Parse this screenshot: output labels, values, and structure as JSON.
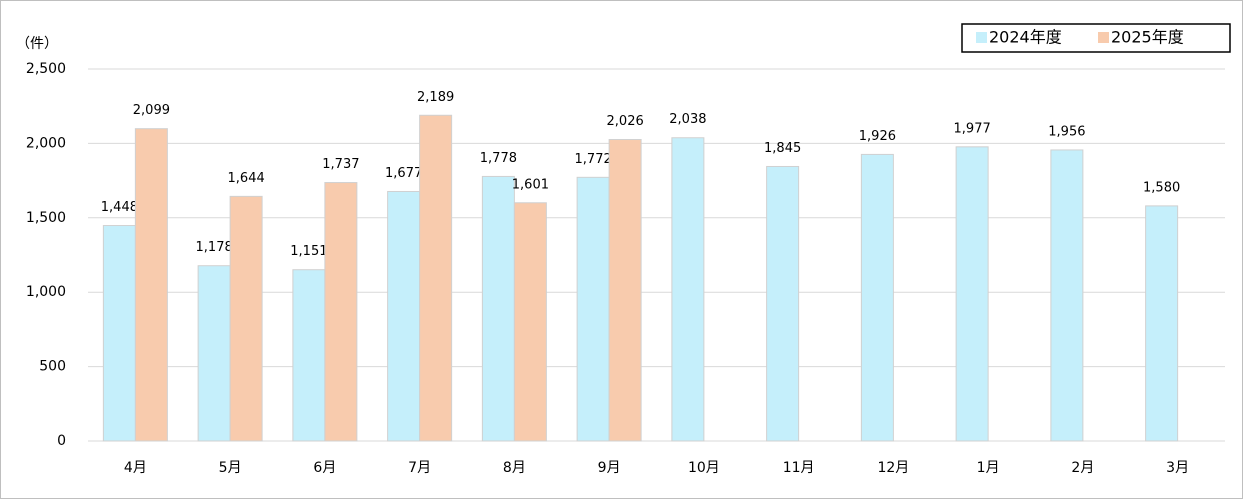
{
  "chart_data": {
    "type": "bar",
    "unit_label": "（件）",
    "categories": [
      "4月",
      "5月",
      "6月",
      "7月",
      "8月",
      "9月",
      "10月",
      "11月",
      "12月",
      "1月",
      "2月",
      "3月"
    ],
    "series": [
      {
        "name": "2024年度",
        "color": "#c5effb",
        "values": [
          1448,
          1178,
          1151,
          1677,
          1778,
          1772,
          2038,
          1845,
          1926,
          1977,
          1956,
          1580
        ],
        "value_labels": [
          "1,448",
          "1,178",
          "1,151",
          "1,677",
          "1,778",
          "1,772",
          "2,038",
          "1,845",
          "1,926",
          "1,977",
          "1,956",
          "1,580"
        ]
      },
      {
        "name": "2025年度",
        "color": "#f8cbad",
        "values": [
          2099,
          1644,
          1737,
          2189,
          1601,
          2026,
          null,
          null,
          null,
          null,
          null,
          null
        ],
        "value_labels": [
          "2,099",
          "1,644",
          "1,737",
          "2,189",
          "1,601",
          "2,026",
          null,
          null,
          null,
          null,
          null,
          null
        ]
      }
    ],
    "ylim": [
      0,
      2500
    ],
    "yticks": [
      0,
      500,
      {
        "value": 1000,
        "label": "1,000"
      },
      {
        "value": 1500,
        "label": "1,500"
      },
      {
        "value": 2000,
        "label": "2,000"
      },
      {
        "value": 2500,
        "label": "2,500"
      }
    ],
    "grid": true,
    "legend": "top-right"
  }
}
